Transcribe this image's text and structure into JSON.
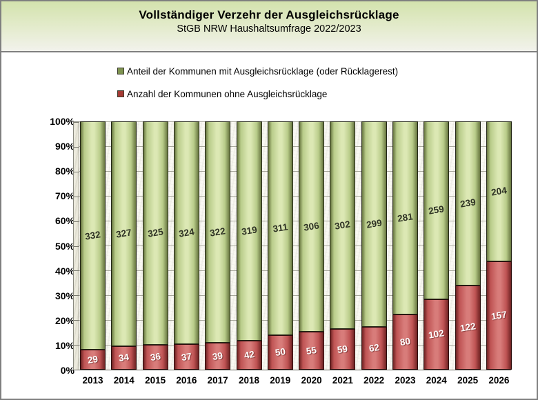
{
  "header": {
    "title": "Vollständiger Verzehr der Ausgleichsrücklage",
    "subtitle": "StGB NRW Haushaltsumfrage 2022/2023"
  },
  "legend": {
    "items": [
      {
        "label": "Anteil der Kommunen mit Ausgleichsrücklage (oder Rücklagerest)",
        "swatch_color": "#7e9350"
      },
      {
        "label": "Anzahl der Kommunen ohne Ausgleichsrücklage",
        "swatch_color": "#a53a34"
      }
    ]
  },
  "chart_data": {
    "type": "bar",
    "variant": "stacked-100-percent-cylinder",
    "title": "Vollständiger Verzehr der Ausgleichsrücklage",
    "subtitle": "StGB NRW Haushaltsumfrage 2022/2023",
    "categories": [
      "2013",
      "2014",
      "2015",
      "2016",
      "2017",
      "2018",
      "2019",
      "2020",
      "2021",
      "2022",
      "2023",
      "2024",
      "2025",
      "2026"
    ],
    "series": [
      {
        "name": "Anteil der Kommunen mit Ausgleichsrücklage (oder Rücklagerest)",
        "stack_position": "top",
        "values": [
          332,
          327,
          325,
          324,
          322,
          319,
          311,
          306,
          302,
          299,
          281,
          259,
          239,
          204
        ],
        "color_edge": "#66753f",
        "color_mid": "#b9cc8a",
        "color_center": "#dce8b4",
        "label_color": "#2e3224"
      },
      {
        "name": "Anzahl der Kommunen ohne Ausgleichsrücklage",
        "stack_position": "bottom",
        "values": [
          29,
          34,
          36,
          37,
          39,
          42,
          50,
          55,
          59,
          62,
          80,
          102,
          122,
          157
        ],
        "color_edge": "#6e2222",
        "color_mid": "#bf5454",
        "color_center": "#d87c7a",
        "label_color": "#ffffff"
      }
    ],
    "totals_per_category": [
      361,
      361,
      361,
      361,
      361,
      361,
      361,
      361,
      361,
      361,
      361,
      361,
      361,
      361
    ],
    "xlabel": "",
    "ylabel": "",
    "ylim": [
      0,
      100
    ],
    "y_tick_step_percent": 10,
    "y_ticks": [
      "0%",
      "10%",
      "20%",
      "30%",
      "40%",
      "50%",
      "60%",
      "70%",
      "80%",
      "90%",
      "100%"
    ],
    "grid": true,
    "legend_position": "top-left-above-plot"
  },
  "colors": {
    "frame_border": "#7f7f7f",
    "header_gradient_top": "#d3e2ad",
    "header_gradient_bottom": "#f2f2ec",
    "gridline": "#a7a79c"
  }
}
